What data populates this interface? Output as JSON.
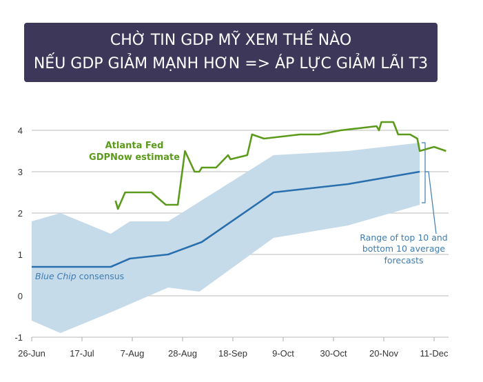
{
  "banner": {
    "line1": "CHỜ TIN GDP MỸ XEM THẾ NÀO",
    "line2": "NẾU GDP GIẢM MẠNH HƠN => ÁP LỰC GIẢM LÃI T3"
  },
  "chart_data": {
    "type": "line",
    "title": "",
    "xlabel": "",
    "ylabel": "",
    "x_unit": "days since 26-Jun",
    "ylim": [
      -1,
      4
    ],
    "xlim": [
      0,
      175
    ],
    "yticks": [
      4,
      3,
      2,
      1,
      0,
      -1
    ],
    "xticks": [
      {
        "day": 0,
        "label": "26-Jun"
      },
      {
        "day": 21,
        "label": "17-Jul"
      },
      {
        "day": 42,
        "label": "7-Aug"
      },
      {
        "day": 63,
        "label": "28-Aug"
      },
      {
        "day": 84,
        "label": "18-Sep"
      },
      {
        "day": 105,
        "label": "9-Oct"
      },
      {
        "day": 126,
        "label": "30-Oct"
      },
      {
        "day": 147,
        "label": "20-Nov"
      },
      {
        "day": 168,
        "label": "11-Dec"
      }
    ],
    "grid": true,
    "series": [
      {
        "name": "Atlanta Fed GDPNow estimate",
        "label_lines": [
          "Atlanta Fed",
          "GDPNow estimate"
        ],
        "color": "#5b9a1b",
        "points": [
          [
            35,
            2.3
          ],
          [
            36,
            2.1
          ],
          [
            39,
            2.5
          ],
          [
            50,
            2.5
          ],
          [
            56,
            2.2
          ],
          [
            61,
            2.2
          ],
          [
            64,
            3.5
          ],
          [
            68,
            3.0
          ],
          [
            70,
            3.0
          ],
          [
            71,
            3.1
          ],
          [
            77,
            3.1
          ],
          [
            82,
            3.4
          ],
          [
            83,
            3.3
          ],
          [
            90,
            3.4
          ],
          [
            92,
            3.9
          ],
          [
            97,
            3.8
          ],
          [
            112,
            3.9
          ],
          [
            120,
            3.9
          ],
          [
            129,
            4.0
          ],
          [
            144,
            4.1
          ],
          [
            145,
            4.0
          ],
          [
            146,
            4.2
          ],
          [
            151,
            4.2
          ],
          [
            153,
            3.9
          ],
          [
            158,
            3.9
          ],
          [
            161,
            3.8
          ],
          [
            162,
            3.5
          ],
          [
            168,
            3.6
          ],
          [
            173,
            3.5
          ]
        ]
      },
      {
        "name": "Blue Chip consensus",
        "label_italic": "Blue Chip",
        "label_rest": " consensus",
        "color": "#2a6fad",
        "points": [
          [
            0,
            0.7
          ],
          [
            33,
            0.7
          ],
          [
            41,
            0.9
          ],
          [
            57,
            1.0
          ],
          [
            71,
            1.3
          ],
          [
            101,
            2.5
          ],
          [
            132,
            2.7
          ],
          [
            162,
            3.0
          ]
        ]
      }
    ],
    "band": {
      "name": "Range of top 10 and bottom 10 average forecasts",
      "label_lines": [
        "Range of top 10 and",
        "bottom 10 average",
        "forecasts"
      ],
      "color": "#c5dbea",
      "upper": [
        [
          0,
          1.8
        ],
        [
          12,
          2.0
        ],
        [
          33,
          1.5
        ],
        [
          41,
          1.8
        ],
        [
          57,
          1.8
        ],
        [
          101,
          3.4
        ],
        [
          132,
          3.5
        ],
        [
          162,
          3.7
        ]
      ],
      "lower": [
        [
          0,
          -0.6
        ],
        [
          12,
          -0.9
        ],
        [
          33,
          -0.4
        ],
        [
          57,
          0.2
        ],
        [
          70,
          0.1
        ],
        [
          101,
          1.4
        ],
        [
          132,
          1.7
        ],
        [
          162,
          2.2
        ]
      ]
    }
  }
}
